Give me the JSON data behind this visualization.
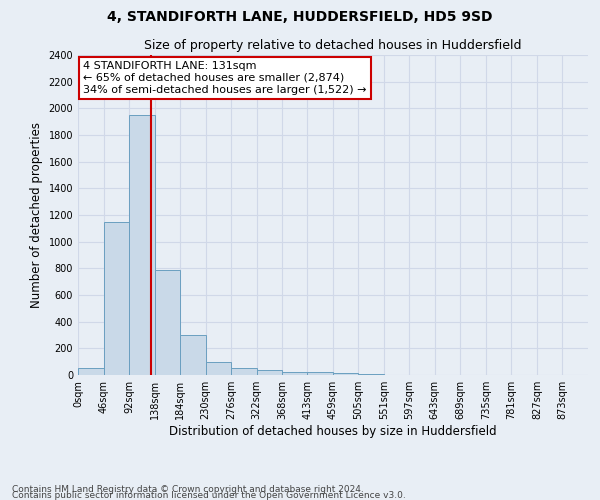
{
  "title": "4, STANDIFORTH LANE, HUDDERSFIELD, HD5 9SD",
  "subtitle": "Size of property relative to detached houses in Huddersfield",
  "xlabel": "Distribution of detached houses by size in Huddersfield",
  "ylabel": "Number of detached properties",
  "footer1": "Contains HM Land Registry data © Crown copyright and database right 2024.",
  "footer2": "Contains public sector information licensed under the Open Government Licence v3.0.",
  "bin_edges": [
    0,
    46,
    92,
    138,
    184,
    230,
    276,
    322,
    368,
    413,
    459,
    505,
    551,
    597,
    643,
    689,
    735,
    781,
    827,
    873,
    919
  ],
  "bar_heights": [
    50,
    1150,
    1950,
    790,
    300,
    95,
    55,
    35,
    25,
    20,
    15,
    5,
    0,
    0,
    0,
    0,
    0,
    0,
    0,
    0
  ],
  "bar_color": "#c9d9e8",
  "bar_edge_color": "#6a9fc0",
  "property_size": 131,
  "property_line_color": "#cc0000",
  "annotation_line1": "4 STANDIFORTH LANE: 131sqm",
  "annotation_line2": "← 65% of detached houses are smaller (2,874)",
  "annotation_line3": "34% of semi-detached houses are larger (1,522) →",
  "annotation_box_color": "white",
  "annotation_box_edge_color": "#cc0000",
  "ylim": [
    0,
    2400
  ],
  "yticks": [
    0,
    200,
    400,
    600,
    800,
    1000,
    1200,
    1400,
    1600,
    1800,
    2000,
    2200,
    2400
  ],
  "grid_color": "#d0d8e8",
  "background_color": "#e8eef5",
  "title_fontsize": 10,
  "subtitle_fontsize": 9,
  "label_fontsize": 8.5,
  "tick_fontsize": 7,
  "footer_fontsize": 6.5,
  "annotation_fontsize": 8
}
